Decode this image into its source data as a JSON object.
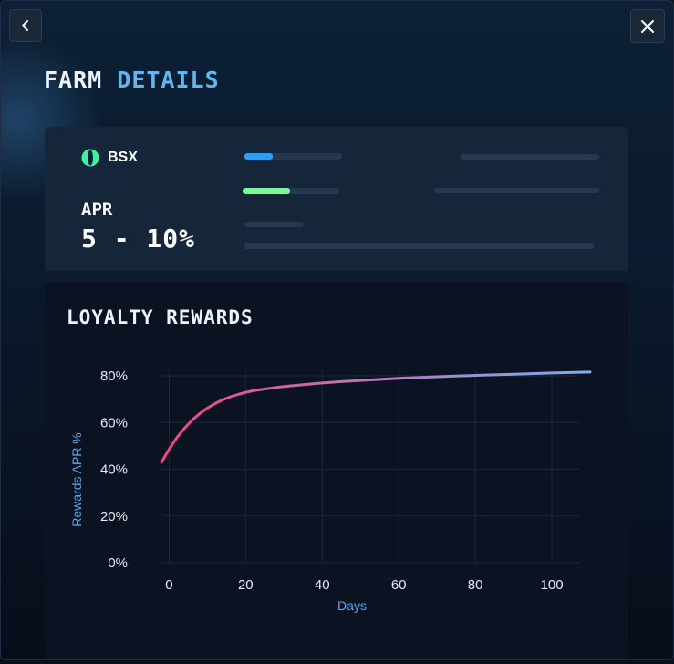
{
  "header": {
    "title_main": "FARM",
    "title_accent": "DETAILS"
  },
  "farm": {
    "token_symbol": "BSX",
    "apr_label": "APR",
    "apr_value": "5 - 10%",
    "progress_bars": [
      {
        "value": 0.29,
        "color": "#2e9df2"
      },
      {
        "value": 0.49,
        "color": "#7ff5a3"
      }
    ]
  },
  "chart_section": {
    "title": "LOYALTY REWARDS"
  },
  "chart_data": {
    "type": "line",
    "xlabel": "Days",
    "ylabel": "Rewards APR %",
    "xlim": [
      -2,
      110
    ],
    "ylim": [
      0,
      90
    ],
    "x_ticks": [
      0,
      20,
      40,
      60,
      80,
      100
    ],
    "y_ticks": [
      0,
      20,
      40,
      60,
      80
    ],
    "y_tick_labels": [
      "0%",
      "20%",
      "40%",
      "60%",
      "80%"
    ],
    "grid": true,
    "series": [
      {
        "x": [
          -2,
          0,
          2,
          4,
          6,
          8,
          10,
          12,
          14,
          16,
          18,
          20,
          22,
          24,
          27,
          30,
          35,
          40,
          45,
          50,
          60,
          70,
          80,
          90,
          100,
          110
        ],
        "y": [
          43,
          48.5,
          53.5,
          57.5,
          61,
          63.8,
          66.2,
          68.1,
          69.7,
          71,
          72,
          72.9,
          73.6,
          74.1,
          74.8,
          75.4,
          76.2,
          76.9,
          77.5,
          78,
          78.9,
          79.6,
          80.2,
          80.7,
          81.2,
          81.6
        ],
        "color_start": "#f2467c",
        "color_end": "#7aaef0"
      }
    ]
  },
  "colors": {
    "background": "#0b1a2d",
    "accent_blue": "#61b7ef",
    "axis_label": "#5aa6e6"
  }
}
